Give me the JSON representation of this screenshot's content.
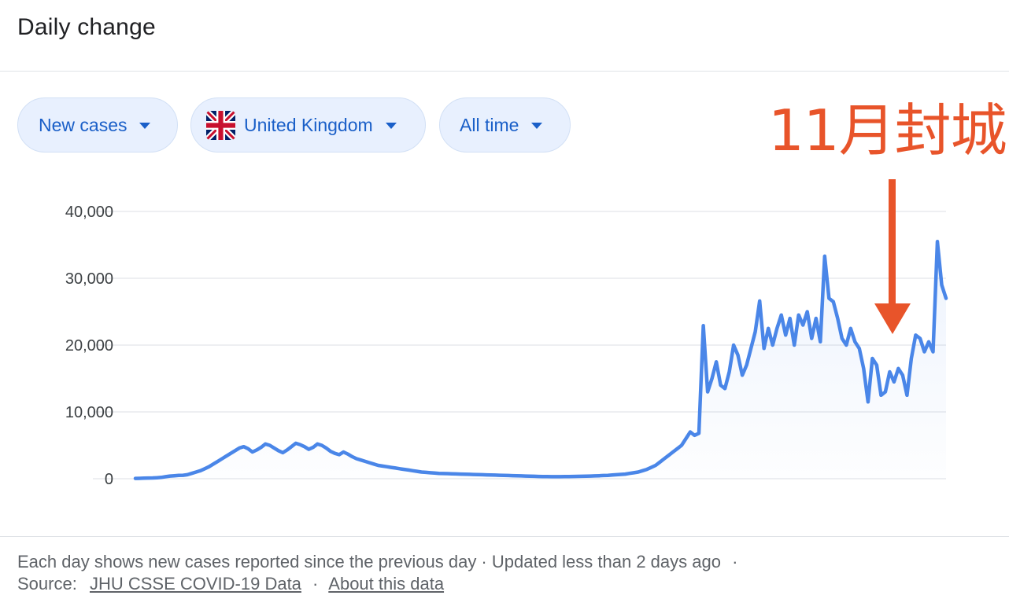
{
  "header": {
    "title": "Daily change"
  },
  "filters": {
    "metric": "New cases",
    "region": "United Kingdom",
    "period": "All time"
  },
  "annotation": {
    "text": "11月封城",
    "color": "#e8542a"
  },
  "footer": {
    "description": "Each day shows new cases reported since the previous day · Updated less than 2 days ago",
    "dot": "·",
    "source_label": "Source:",
    "source_link": "JHU CSSE COVID-19 Data",
    "about_link": "About this data"
  },
  "colors": {
    "line": "#4a86e8",
    "chip_text": "#1a5fc8",
    "chip_bg": "#e8f0fe",
    "annotation": "#e8542a"
  },
  "chart_data": {
    "type": "area",
    "title": "",
    "xlabel": "",
    "ylabel": "",
    "ylim": [
      0,
      40000
    ],
    "yticks": [
      0,
      10000,
      20000,
      30000,
      40000
    ],
    "ytick_labels": [
      "0",
      "10,000",
      "20,000",
      "30,000",
      "40,000"
    ],
    "grid": true,
    "legend": "none",
    "x_note": "daily index from first reported case to latest day",
    "series": [
      {
        "values": [
          50,
          60,
          80,
          100,
          120,
          150,
          200,
          300,
          400,
          450,
          500,
          520,
          600,
          800,
          1000,
          1200,
          1500,
          1800,
          2200,
          2600,
          3000,
          3400,
          3800,
          4200,
          4600,
          4800,
          4500,
          4000,
          4300,
          4700,
          5200,
          5000,
          4600,
          4200,
          3900,
          4300,
          4800,
          5300,
          5100,
          4800,
          4400,
          4700,
          5200,
          5000,
          4600,
          4100,
          3800,
          3600,
          4000,
          3700,
          3300,
          3000,
          2800,
          2600,
          2400,
          2200,
          2000,
          1900,
          1800,
          1700,
          1600,
          1500,
          1400,
          1300,
          1200,
          1100,
          1000,
          950,
          900,
          850,
          800,
          780,
          760,
          740,
          720,
          700,
          680,
          660,
          640,
          620,
          600,
          580,
          560,
          540,
          520,
          500,
          480,
          460,
          440,
          420,
          400,
          380,
          360,
          340,
          330,
          320,
          310,
          300,
          310,
          320,
          330,
          340,
          350,
          360,
          380,
          400,
          420,
          450,
          480,
          500,
          550,
          600,
          650,
          700,
          800,
          900,
          1000,
          1200,
          1400,
          1700,
          2000,
          2500,
          3000,
          3500,
          4000,
          4500,
          5000,
          6000,
          7000,
          6500,
          6800,
          22900,
          13000,
          15000,
          17500,
          14000,
          13500,
          16000,
          20000,
          18500,
          15500,
          17000,
          19500,
          22000,
          26600,
          19500,
          22500,
          20000,
          22500,
          24500,
          21500,
          24000,
          20000,
          24500,
          23000,
          25000,
          21000,
          24000,
          20500,
          33300,
          27000,
          26500,
          24000,
          21000,
          20000,
          22500,
          20500,
          19500,
          16500,
          11500,
          18000,
          17000,
          12500,
          13000,
          16000,
          14500,
          16500,
          15500,
          12500,
          18000,
          21500,
          21000,
          19000,
          20500,
          19000,
          35500,
          29000,
          27000
        ]
      }
    ]
  }
}
